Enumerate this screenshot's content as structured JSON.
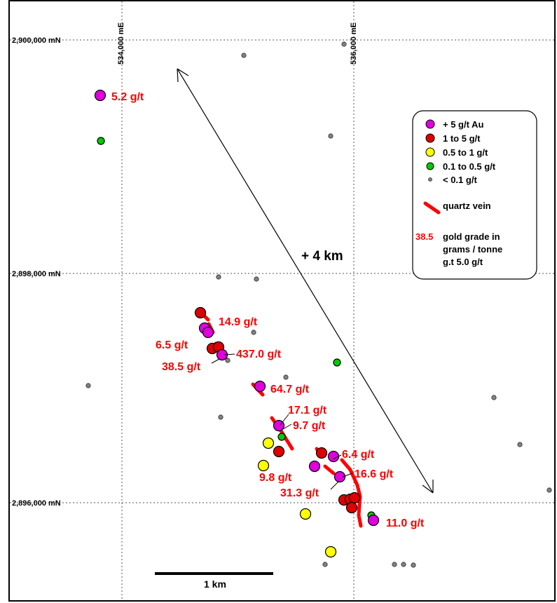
{
  "grid": {
    "easting_labels": [
      "534,000 mE",
      "536,000 mE"
    ],
    "northing_labels": [
      "2,900,000 mN",
      "2,898,000 mN",
      "2,896,000 mN"
    ]
  },
  "distance_label": "+ 4 km",
  "scale_bar_label": "1 km",
  "legend": {
    "items": [
      {
        "label": "+ 5 g/t Au",
        "symbol": "magenta-circle",
        "color": "#e000e0"
      },
      {
        "label": "1 to 5 g/t",
        "symbol": "red-circle",
        "color": "#e00000"
      },
      {
        "label": "0.5 to 1 g/t",
        "symbol": "yellow-circle",
        "color": "#ffff00"
      },
      {
        "label": "0.1 to 0.5 g/t",
        "symbol": "green-circle",
        "color": "#00cc00"
      },
      {
        "label": "< 0.1 g/t",
        "symbol": "grey-dot",
        "color": "#808080"
      },
      {
        "label": "quartz vein",
        "symbol": "red-vein",
        "color": "#ff0000"
      }
    ],
    "example_value": "38.5",
    "grade_text_lines": [
      "gold grade in",
      "grams / tonne",
      "g.t  5.0  g/t"
    ]
  },
  "grade_labels": [
    "5.2 g/t",
    "14.9 g/t",
    "6.5 g/t",
    "437.0 g/t",
    "38.5 g/t",
    "64.7 g/t",
    "17.1 g/t",
    "9.7 g/t",
    "6.4 g/t",
    "16.6 g/t",
    "9.8 g/t",
    "31.3 g/t",
    "11.0 g/t"
  ],
  "colors": {
    "magenta": "#e000e0",
    "red": "#e00000",
    "yellow": "#ffff00",
    "green": "#00cc00",
    "grey": "#808080",
    "vein": "#ff0000",
    "label": "#ff0000"
  }
}
